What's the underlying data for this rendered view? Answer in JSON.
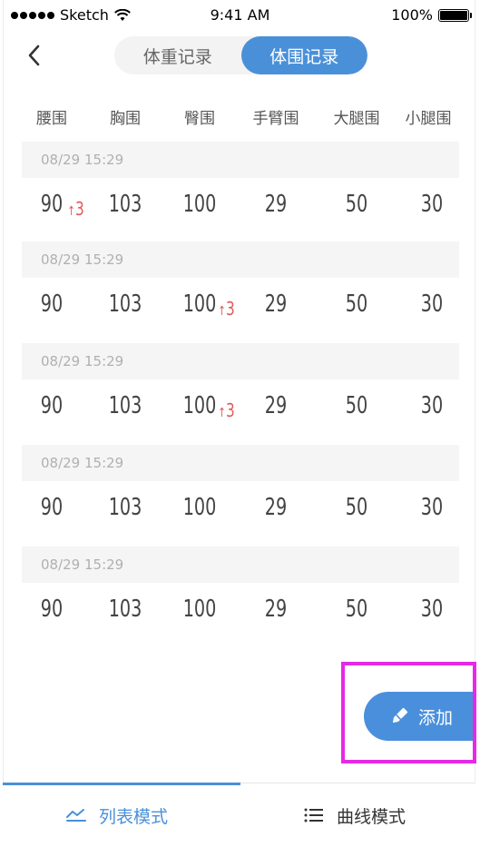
{
  "status_bar": {
    "carrier": "Sketch",
    "time": "9:41 AM",
    "battery": "100%"
  },
  "header": {
    "tabs": [
      {
        "label": "体重记录",
        "active": false
      },
      {
        "label": "体围记录",
        "active": true
      }
    ]
  },
  "columns": [
    "腰围",
    "胸围",
    "臀围",
    "手臂围",
    "大腿围",
    "小腿围"
  ],
  "records": [
    {
      "datetime": "08/29 15:29",
      "values": [
        "90",
        "103",
        "100",
        "29",
        "50",
        "30"
      ],
      "delta_index": 0,
      "delta": "3"
    },
    {
      "datetime": "08/29 15:29",
      "values": [
        "90",
        "103",
        "100",
        "29",
        "50",
        "30"
      ],
      "delta_index": 2,
      "delta": "3"
    },
    {
      "datetime": "08/29 15:29",
      "values": [
        "90",
        "103",
        "100",
        "29",
        "50",
        "30"
      ],
      "delta_index": 2,
      "delta": "3"
    },
    {
      "datetime": "08/29 15:29",
      "values": [
        "90",
        "103",
        "100",
        "29",
        "50",
        "30"
      ],
      "delta_index": null,
      "delta": ""
    },
    {
      "datetime": "08/29 15:29",
      "values": [
        "90",
        "103",
        "100",
        "29",
        "50",
        "30"
      ],
      "delta_index": null,
      "delta": ""
    }
  ],
  "add_button": {
    "label": "添加",
    "icon": "pencil-icon"
  },
  "tabbar": {
    "list_label": "列表模式",
    "curve_label": "曲线模式",
    "active": "list"
  },
  "colors": {
    "accent": "#4a90d9",
    "delta": "#e35b5b",
    "highlight_box": "#e629e6"
  }
}
